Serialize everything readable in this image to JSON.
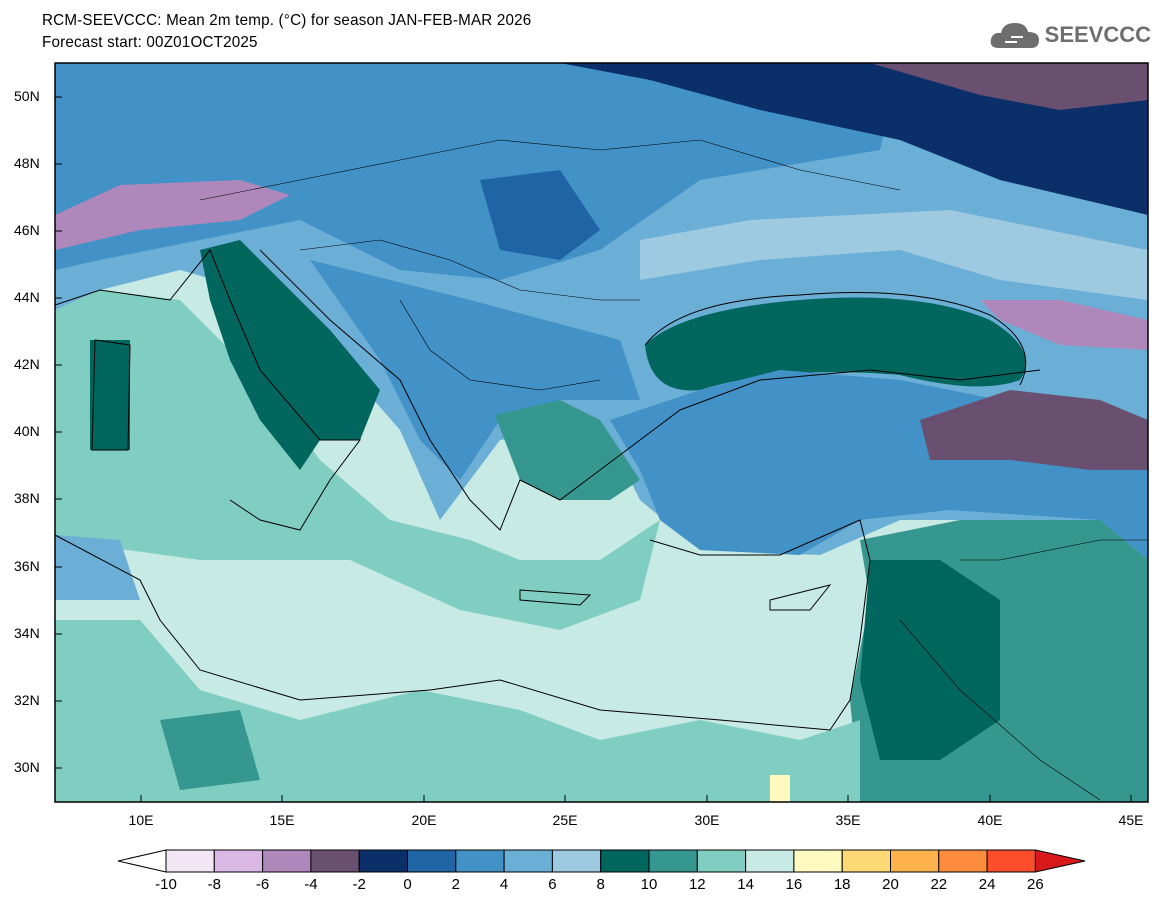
{
  "header": {
    "title": "RCM-SEEVCCC: Mean 2m temp. (°C) for season JAN-FEB-MAR 2026",
    "subtitle": "Forecast start: 00Z01OCT2025",
    "logo_text": "SEEVCCC",
    "logo_icon": "cloud-icon"
  },
  "map": {
    "lat_labels": [
      "50N",
      "48N",
      "46N",
      "44N",
      "42N",
      "40N",
      "38N",
      "36N",
      "34N",
      "32N",
      "30N"
    ],
    "lon_labels": [
      "10E",
      "15E",
      "20E",
      "25E",
      "30E",
      "35E",
      "40E",
      "45E"
    ],
    "extent": {
      "lon": [
        7,
        46
      ],
      "lat": [
        29,
        51
      ]
    }
  },
  "colorbar": {
    "labels": [
      "-10",
      "-8",
      "-6",
      "-4",
      "-2",
      "0",
      "2",
      "4",
      "6",
      "8",
      "10",
      "12",
      "14",
      "16",
      "18",
      "20",
      "22",
      "24",
      "26"
    ],
    "colors": [
      "#f2e6f5",
      "#dab8e6",
      "#ae88bb",
      "#6a5070",
      "#0b2f68",
      "#1f64a4",
      "#4392c7",
      "#6baed6",
      "#9ecae1",
      "#01665e",
      "#35978f",
      "#80cdc1",
      "#c7eae5",
      "#fffac0",
      "#fed875",
      "#feb24c",
      "#fd8d3c",
      "#fc4e2a"
    ],
    "under_color": "#ffffff",
    "over_color": "#d7191c"
  }
}
